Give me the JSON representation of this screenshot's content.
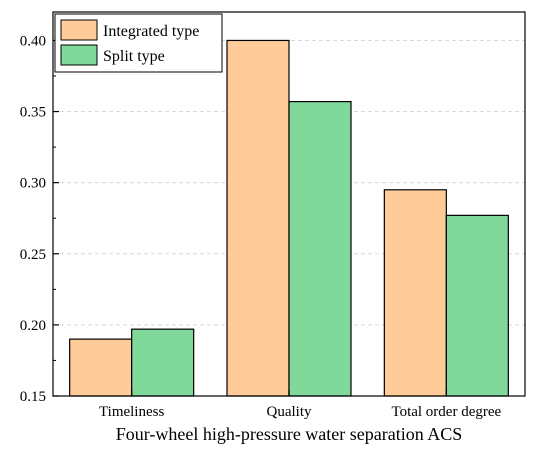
{
  "chart_data": {
    "type": "bar",
    "categories": [
      "Timeliness",
      "Quality",
      "Total order degree"
    ],
    "series": [
      {
        "name": "Integrated type",
        "values": [
          0.19,
          0.4,
          0.295
        ],
        "color": "#FFCC99"
      },
      {
        "name": "Split type",
        "values": [
          0.197,
          0.357,
          0.277
        ],
        "color": "#80D99B"
      }
    ],
    "xlabel": "Four-wheel high-pressure water separation ACS",
    "ylabel": "",
    "ylim": [
      0.15,
      0.42
    ],
    "yticks": [
      "0.15",
      "0.20",
      "0.25",
      "0.30",
      "0.35",
      "0.40"
    ],
    "grid": true,
    "legend_position": "top-left"
  }
}
